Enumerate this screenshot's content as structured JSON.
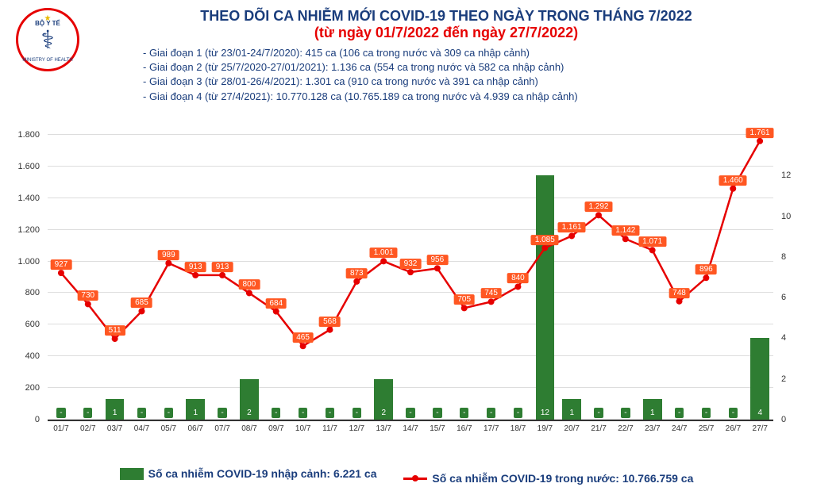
{
  "header": {
    "logo_top": "BỘ Y TẾ",
    "logo_bottom": "MINISTRY OF HEALTH",
    "title1": "THEO DÕI CA NHIỄM MỚI COVID-19 THEO NGÀY TRONG THÁNG 7/2022",
    "title2": "(từ ngày 01/7/2022 đến ngày 27/7/2022)",
    "phases": [
      "- Giai đoạn 1 (từ 23/01-24/7/2020): 415 ca (106 ca trong nước và 309 ca nhập cảnh)",
      "- Giai đoạn 2 (từ 25/7/2020-27/01/2021): 1.136 ca (554 ca trong nước và 582 ca nhập cảnh)",
      "- Giai đoạn 3 (từ 28/01-26/4/2021): 1.301 ca (910 ca trong nước và 391 ca nhập cảnh)",
      "- Giai đoạn 4 (từ 27/4/2021): 10.770.128 ca (10.765.189 ca trong nước và 4.939 ca nhập cảnh)"
    ]
  },
  "chart": {
    "type": "combo-bar-line",
    "dates": [
      "01/7",
      "02/7",
      "03/7",
      "04/7",
      "05/7",
      "06/7",
      "07/7",
      "08/7",
      "09/7",
      "10/7",
      "11/7",
      "12/7",
      "13/7",
      "14/7",
      "15/7",
      "16/7",
      "17/7",
      "18/7",
      "19/7",
      "20/7",
      "21/7",
      "22/7",
      "23/7",
      "24/7",
      "25/7",
      "26/7",
      "27/7"
    ],
    "bars": {
      "values": [
        "-",
        "-",
        "1",
        "-",
        "-",
        "1",
        "-",
        "2",
        "-",
        "-",
        "-",
        "-",
        "2",
        "-",
        "-",
        "-",
        "-",
        "-",
        "12",
        "1",
        "-",
        "-",
        "1",
        "-",
        "-",
        "-",
        "4"
      ],
      "raw": [
        0,
        0,
        1,
        0,
        0,
        1,
        0,
        2,
        0,
        0,
        0,
        0,
        2,
        0,
        0,
        0,
        0,
        0,
        12,
        1,
        0,
        0,
        1,
        0,
        0,
        0,
        4
      ],
      "color": "#2e7d32",
      "label_bg": "#2e7d32",
      "y2max": 14
    },
    "line": {
      "values": [
        927,
        730,
        511,
        685,
        989,
        913,
        913,
        800,
        684,
        465,
        568,
        873,
        1001,
        932,
        956,
        705,
        745,
        840,
        1085,
        1161,
        1292,
        1142,
        1071,
        748,
        896,
        1460,
        1761
      ],
      "labels": [
        "927",
        "730",
        "511",
        "685",
        "989",
        "913",
        "913",
        "800",
        "684",
        "465",
        "568",
        "873",
        "1.001",
        "932",
        "956",
        "705",
        "745",
        "840",
        "1.085",
        "1.161",
        "1.292",
        "1.142",
        "1.071",
        "748",
        "896",
        "1.460",
        "1.761"
      ],
      "color": "#e60000",
      "label_bg": "#ff5722",
      "ymax": 1800,
      "ymin": 0
    },
    "y_left_ticks": [
      0,
      200,
      400,
      600,
      800,
      1000,
      1200,
      1400,
      1600,
      1800
    ],
    "y_left_labels": [
      "0",
      "200",
      "400",
      "600",
      "800",
      "1.000",
      "1.200",
      "1.400",
      "1.600",
      "1.800"
    ],
    "y_right_ticks": [
      0,
      2,
      4,
      6,
      8,
      10,
      12
    ],
    "grid_color": "#dddddd",
    "background_color": "#ffffff",
    "axis_fontsize": 11
  },
  "legend": {
    "bar_text": "Số ca nhiễm COVID-19 nhập cảnh: 6.221 ca",
    "line_text": "Số ca nhiễm COVID-19 trong nước: 10.766.759 ca"
  }
}
